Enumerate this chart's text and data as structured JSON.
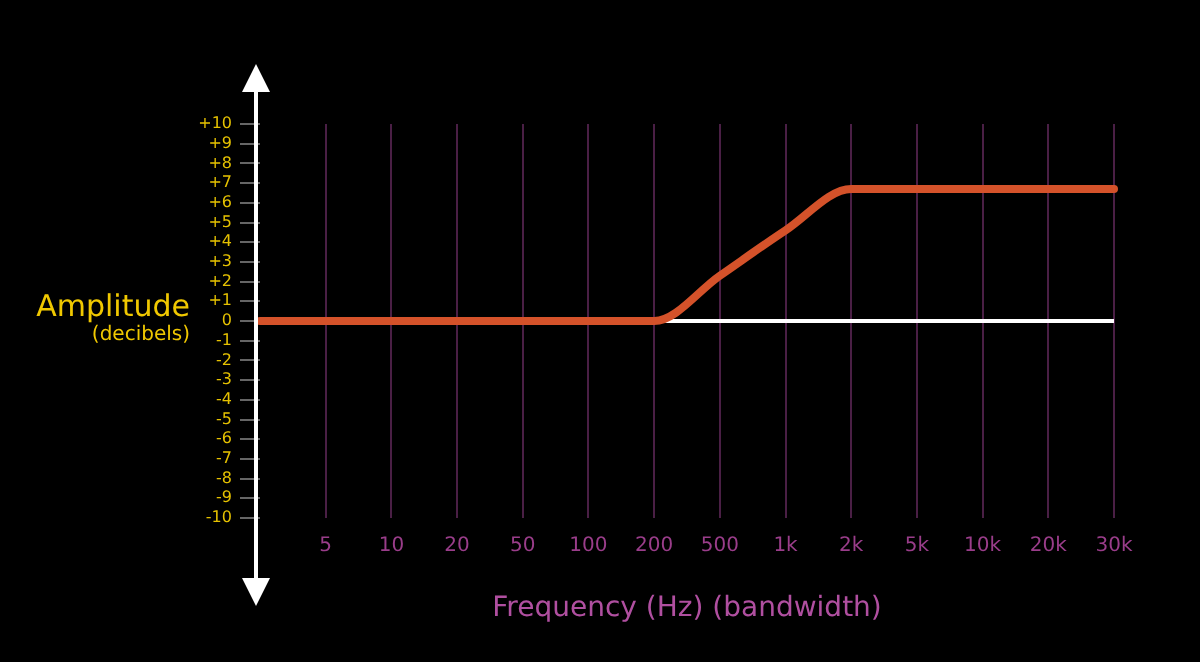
{
  "chart_data": {
    "type": "line",
    "xlabel": "Frequency (Hz) (bandwidth)",
    "ylabel": "Amplitude\n(decibels)",
    "categories": [
      null,
      "5",
      "10",
      "20",
      "50",
      "100",
      "200",
      "500",
      "1k",
      "2k",
      "5k",
      "10k",
      "20k",
      "30k"
    ],
    "series": [
      {
        "color": "#d4522a",
        "values": [
          0,
          0,
          0,
          0,
          0,
          0,
          0,
          2.3,
          4.6,
          6.7,
          6.7,
          6.7,
          6.7,
          6.7
        ]
      }
    ],
    "ylim": [
      -10,
      10
    ],
    "yticks": [
      {
        "value": -10,
        "label": "-10"
      },
      {
        "value": -9,
        "label": "-9"
      },
      {
        "value": -8,
        "label": "-8"
      },
      {
        "value": -7,
        "label": "-7"
      },
      {
        "value": -6,
        "label": "-6"
      },
      {
        "value": -5,
        "label": "-5"
      },
      {
        "value": -4,
        "label": "-4"
      },
      {
        "value": -3,
        "label": "-3"
      },
      {
        "value": -2,
        "label": "-2"
      },
      {
        "value": -1,
        "label": "-1"
      },
      0,
      {
        "value": 1,
        "label": "+1"
      },
      {
        "value": 2,
        "label": "+2"
      },
      {
        "value": 3,
        "label": "+3"
      },
      {
        "value": 4,
        "label": "+4"
      },
      {
        "value": 5,
        "label": "+5"
      },
      {
        "value": 6,
        "label": "+6"
      },
      {
        "value": 7,
        "label": "+7"
      },
      {
        "value": 8,
        "label": "+8"
      },
      {
        "value": 9,
        "label": "+9"
      },
      {
        "value": 10,
        "label": "+10"
      }
    ],
    "ref_lines": [
      {
        "axis": "y",
        "value": 0,
        "color": "#ffffff"
      }
    ],
    "grid": "x",
    "legend": false,
    "marker": "none",
    "line_style": "solid"
  }
}
